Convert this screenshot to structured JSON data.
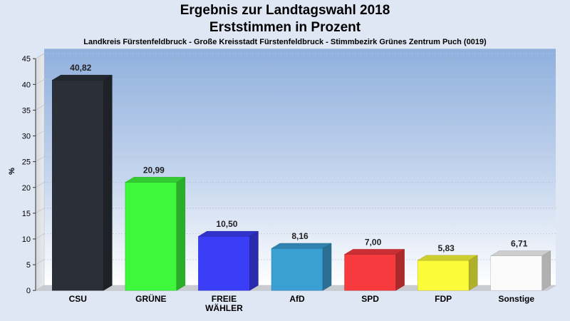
{
  "chart_data": {
    "type": "bar",
    "title": "Ergebnis zur Landtagswahl 2018",
    "subtitle": "Erststimmen in Prozent",
    "caption": "Landkreis Fürstenfeldbruck - Große Kreisstadt Fürstenfeldbruck - Stimmbezirk Grünes Zentrum Puch (0019)",
    "ylabel": "%",
    "xlabel": "",
    "ylim": [
      0,
      45
    ],
    "yticks": [
      0,
      5,
      10,
      15,
      20,
      25,
      30,
      35,
      40,
      45
    ],
    "grid": true,
    "categories": [
      {
        "lines": [
          "CSU"
        ],
        "value": 40.82,
        "label": "40,82",
        "color": "#2b2f38"
      },
      {
        "lines": [
          "GRÜNE"
        ],
        "value": 20.99,
        "label": "20,99",
        "color": "#3ef83c"
      },
      {
        "lines": [
          "FREIE",
          "WÄHLER"
        ],
        "value": 10.5,
        "label": "10,50",
        "color": "#3a3ef6"
      },
      {
        "lines": [
          "AfD"
        ],
        "value": 8.16,
        "label": "8,16",
        "color": "#3aa0d4"
      },
      {
        "lines": [
          "SPD"
        ],
        "value": 7.0,
        "label": "7,00",
        "color": "#f63a3e"
      },
      {
        "lines": [
          "FDP"
        ],
        "value": 5.83,
        "label": "5,83",
        "color": "#fbfb3a"
      },
      {
        "lines": [
          "Sonstige"
        ],
        "value": 6.71,
        "label": "6,71",
        "color": "#fbfbfb"
      }
    ]
  }
}
